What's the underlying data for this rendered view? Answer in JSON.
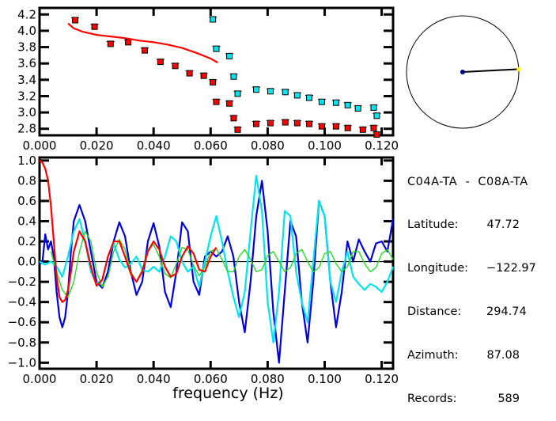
{
  "chart_data": [
    {
      "type": "scatter",
      "title": "",
      "xlabel": "",
      "ylabel": "",
      "xlim": [
        0.0,
        0.124
      ],
      "ylim": [
        2.72,
        4.28
      ],
      "x_ticks": [
        "0.000",
        "0.020",
        "0.040",
        "0.060",
        "0.080",
        "0.100",
        "0.120"
      ],
      "x_tick_values": [
        0.0,
        0.02,
        0.04,
        0.06,
        0.08,
        0.1,
        0.12
      ],
      "y_ticks": [
        "4.2",
        "4.0",
        "3.8",
        "3.6",
        "3.4",
        "3.2",
        "3.0",
        "2.8"
      ],
      "y_tick_values": [
        4.2,
        4.0,
        3.8,
        3.6,
        3.4,
        3.2,
        3.0,
        2.8
      ],
      "series": [
        {
          "name": "red-squares",
          "color": "#ff0000",
          "marker": "square",
          "x": [
            0.0125,
            0.0193,
            0.0249,
            0.0311,
            0.0369,
            0.0424,
            0.0476,
            0.0526,
            0.0576,
            0.0608,
            0.062,
            0.0666,
            0.0681,
            0.0695,
            0.076,
            0.081,
            0.0862,
            0.0904,
            0.0946,
            0.099,
            0.104,
            0.1081,
            0.1134,
            0.1172
          ],
          "y": [
            4.13,
            4.05,
            3.84,
            3.86,
            3.76,
            3.62,
            3.57,
            3.48,
            3.45,
            3.37,
            3.13,
            3.11,
            2.93,
            2.79,
            2.86,
            2.87,
            2.88,
            2.87,
            2.86,
            2.83,
            2.83,
            2.81,
            2.79,
            2.81
          ]
        },
        {
          "name": "red-squares-tail",
          "color": "#ff0000",
          "marker": "square",
          "x": [
            0.1183
          ],
          "y": [
            2.73
          ]
        },
        {
          "name": "cyan-squares",
          "color": "#00e5ee",
          "marker": "square",
          "x": [
            0.0608,
            0.062,
            0.0666,
            0.0681,
            0.0695,
            0.076,
            0.081,
            0.0862,
            0.0904,
            0.0946,
            0.099,
            0.104,
            0.1081,
            0.1117,
            0.1172,
            0.1183
          ],
          "y": [
            4.14,
            3.78,
            3.69,
            3.44,
            3.23,
            3.28,
            3.26,
            3.25,
            3.21,
            3.18,
            3.13,
            3.12,
            3.09,
            3.05,
            3.06,
            2.96
          ]
        },
        {
          "name": "red-fit-line",
          "color": "#ff0000",
          "marker": "line",
          "x": [
            0.01,
            0.012,
            0.015,
            0.02,
            0.025,
            0.03,
            0.035,
            0.04,
            0.045,
            0.05,
            0.055,
            0.06,
            0.0625
          ],
          "y": [
            4.09,
            4.03,
            3.99,
            3.95,
            3.93,
            3.91,
            3.88,
            3.86,
            3.83,
            3.79,
            3.73,
            3.66,
            3.61
          ]
        }
      ]
    },
    {
      "type": "line",
      "title": "",
      "xlabel": "frequency (Hz)",
      "ylabel": "",
      "xlim": [
        0.0,
        0.124
      ],
      "ylim": [
        -1.06,
        1.03
      ],
      "x_ticks": [
        "0.000",
        "0.020",
        "0.040",
        "0.060",
        "0.080",
        "0.100",
        "0.120"
      ],
      "x_tick_values": [
        0.0,
        0.02,
        0.04,
        0.06,
        0.08,
        0.1,
        0.12
      ],
      "y_ticks": [
        "1.0",
        "0.8",
        "0.6",
        "0.4",
        "0.2",
        "0.0",
        "−0.2",
        "−0.4",
        "−0.6",
        "−0.8",
        "−1.0"
      ],
      "y_tick_values": [
        1.0,
        0.8,
        0.6,
        0.4,
        0.2,
        0.0,
        -0.2,
        -0.4,
        -0.6,
        -0.8,
        -1.0
      ],
      "zero_line": true,
      "series": [
        {
          "name": "dark-blue",
          "color": "#0000dd",
          "x": [
            0.0,
            0.001,
            0.002,
            0.003,
            0.004,
            0.005,
            0.006,
            0.007,
            0.008,
            0.009,
            0.01,
            0.011,
            0.012,
            0.014,
            0.016,
            0.018,
            0.02,
            0.022,
            0.024,
            0.026,
            0.028,
            0.03,
            0.032,
            0.034,
            0.036,
            0.038,
            0.04,
            0.042,
            0.044,
            0.046,
            0.048,
            0.05,
            0.052,
            0.054,
            0.056,
            0.058,
            0.06,
            0.062,
            0.064,
            0.066,
            0.068,
            0.07,
            0.072,
            0.074,
            0.076,
            0.078,
            0.08,
            0.082,
            0.084,
            0.086,
            0.088,
            0.09,
            0.092,
            0.094,
            0.096,
            0.098,
            0.1,
            0.102,
            0.104,
            0.106,
            0.108,
            0.11,
            0.112,
            0.114,
            0.116,
            0.118,
            0.12,
            0.122,
            0.124
          ],
          "y": [
            -0.02,
            -0.01,
            0.27,
            0.12,
            0.2,
            0.05,
            -0.3,
            -0.55,
            -0.65,
            -0.55,
            -0.3,
            0.1,
            0.4,
            0.56,
            0.4,
            0.1,
            -0.2,
            -0.26,
            -0.1,
            0.2,
            0.39,
            0.25,
            -0.1,
            -0.33,
            -0.2,
            0.2,
            0.38,
            0.15,
            -0.3,
            -0.45,
            -0.1,
            0.39,
            0.3,
            -0.2,
            -0.33,
            0.05,
            0.1,
            0.05,
            0.1,
            0.25,
            0.05,
            -0.4,
            -0.7,
            -0.2,
            0.45,
            0.8,
            0.3,
            -0.5,
            -1.0,
            -0.3,
            0.4,
            0.25,
            -0.4,
            -0.8,
            -0.2,
            0.6,
            0.45,
            -0.2,
            -0.65,
            -0.3,
            0.2,
            0.0,
            0.22,
            0.1,
            0.0,
            0.18,
            0.2,
            0.1,
            0.42
          ]
        },
        {
          "name": "cyan",
          "color": "#00e5ee",
          "x": [
            0.0,
            0.002,
            0.004,
            0.006,
            0.008,
            0.01,
            0.012,
            0.014,
            0.016,
            0.018,
            0.02,
            0.022,
            0.024,
            0.026,
            0.028,
            0.03,
            0.032,
            0.034,
            0.036,
            0.038,
            0.04,
            0.042,
            0.044,
            0.046,
            0.048,
            0.05,
            0.052,
            0.054,
            0.056,
            0.058,
            0.06,
            0.062,
            0.064,
            0.066,
            0.068,
            0.07,
            0.072,
            0.074,
            0.076,
            0.078,
            0.08,
            0.082,
            0.084,
            0.086,
            0.088,
            0.09,
            0.092,
            0.094,
            0.096,
            0.098,
            0.1,
            0.102,
            0.104,
            0.106,
            0.108,
            0.11,
            0.112,
            0.114,
            0.116,
            0.118,
            0.12,
            0.122,
            0.124
          ],
          "y": [
            0.0,
            -0.03,
            0.0,
            -0.05,
            -0.15,
            0.05,
            0.3,
            0.42,
            0.2,
            -0.1,
            -0.22,
            -0.18,
            0.05,
            0.18,
            0.02,
            -0.06,
            -0.02,
            0.05,
            -0.08,
            -0.1,
            -0.05,
            -0.1,
            0.05,
            0.25,
            0.2,
            0.0,
            -0.1,
            -0.05,
            -0.25,
            0.0,
            0.25,
            0.45,
            0.2,
            -0.1,
            -0.35,
            -0.55,
            -0.3,
            0.3,
            0.85,
            0.5,
            -0.4,
            -0.8,
            -0.3,
            0.5,
            0.45,
            -0.1,
            -0.4,
            -0.6,
            0.0,
            0.6,
            0.45,
            -0.2,
            -0.4,
            -0.1,
            0.1,
            -0.15,
            -0.22,
            -0.28,
            -0.22,
            -0.25,
            -0.3,
            -0.2,
            -0.05
          ]
        },
        {
          "name": "green",
          "color": "#22dd22",
          "x": [
            0.004,
            0.006,
            0.008,
            0.01,
            0.012,
            0.014,
            0.016,
            0.018,
            0.02,
            0.022,
            0.024,
            0.026,
            0.028,
            0.03,
            0.032,
            0.034,
            0.036,
            0.038,
            0.04,
            0.042,
            0.044,
            0.046,
            0.048,
            0.05,
            0.052,
            0.054,
            0.056,
            0.058,
            0.06,
            0.062,
            0.064,
            0.066,
            0.068,
            0.07,
            0.072,
            0.074,
            0.076,
            0.078,
            0.08,
            0.082,
            0.084,
            0.086,
            0.088,
            0.09,
            0.092,
            0.094,
            0.096,
            0.098,
            0.1,
            0.102,
            0.104,
            0.106,
            0.108,
            0.11,
            0.112,
            0.114,
            0.116,
            0.118,
            0.12,
            0.122,
            0.124
          ],
          "y": [
            0.1,
            -0.1,
            -0.28,
            -0.35,
            -0.2,
            0.1,
            0.3,
            0.2,
            -0.1,
            -0.25,
            -0.15,
            0.1,
            0.22,
            0.12,
            -0.1,
            -0.2,
            -0.08,
            0.12,
            0.17,
            0.05,
            -0.12,
            -0.16,
            -0.02,
            0.14,
            0.12,
            -0.04,
            -0.14,
            -0.05,
            0.1,
            0.13,
            0.02,
            -0.1,
            -0.1,
            0.05,
            0.12,
            0.02,
            -0.1,
            -0.08,
            0.06,
            0.1,
            0.0,
            -0.1,
            -0.06,
            0.08,
            0.12,
            0.0,
            -0.1,
            -0.06,
            0.08,
            0.1,
            -0.02,
            -0.1,
            -0.05,
            0.1,
            0.1,
            -0.02,
            -0.1,
            -0.06,
            0.08,
            0.12,
            0.02
          ]
        },
        {
          "name": "red",
          "color": "#ff0000",
          "x": [
            0.0,
            0.001,
            0.002,
            0.003,
            0.004,
            0.005,
            0.006,
            0.007,
            0.008,
            0.009,
            0.01,
            0.011,
            0.012,
            0.014,
            0.016,
            0.018,
            0.02,
            0.022,
            0.024,
            0.026,
            0.028,
            0.03,
            0.032,
            0.034,
            0.036,
            0.038,
            0.04,
            0.042,
            0.044,
            0.046,
            0.048,
            0.05,
            0.052,
            0.054,
            0.056,
            0.058,
            0.06,
            0.062
          ],
          "y": [
            1.0,
            0.98,
            0.92,
            0.8,
            0.55,
            0.2,
            -0.15,
            -0.35,
            -0.4,
            -0.38,
            -0.28,
            -0.1,
            0.1,
            0.3,
            0.2,
            -0.05,
            -0.24,
            -0.18,
            0.05,
            0.2,
            0.2,
            0.05,
            -0.12,
            -0.2,
            -0.1,
            0.1,
            0.2,
            0.12,
            -0.05,
            -0.15,
            -0.12,
            0.05,
            0.15,
            0.08,
            -0.08,
            -0.1,
            0.05,
            0.14
          ]
        }
      ]
    }
  ],
  "map_panel": {
    "center_station_color": "#000080",
    "remote_station_color": "#ffff00",
    "azimuth_deg": 87.08
  },
  "info": {
    "title": "C04A-TA  -  C08A-TA",
    "rows": [
      {
        "label": "Latitude:",
        "value": "47.72"
      },
      {
        "label": "Longitude:",
        "value": "−122.97"
      },
      {
        "label": "Distance:",
        "value": "294.74"
      },
      {
        "label": "Azimuth:",
        "value": "87.08"
      },
      {
        "label": "Records:",
        "value": "589"
      }
    ]
  }
}
